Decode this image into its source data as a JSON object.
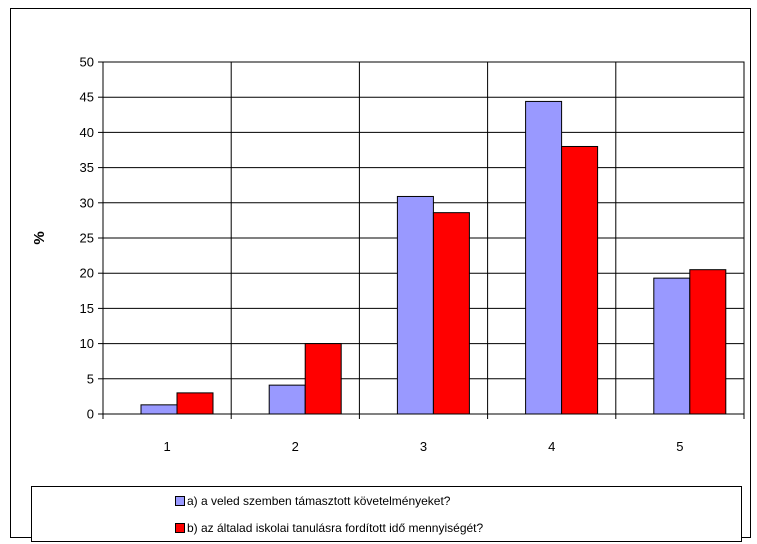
{
  "chart_data": {
    "type": "bar",
    "title": "",
    "xlabel": "",
    "ylabel": "%",
    "ylim": [
      0,
      50
    ],
    "yticks": [
      0,
      5,
      10,
      15,
      20,
      25,
      30,
      35,
      40,
      45,
      50
    ],
    "categories": [
      "1",
      "2",
      "3",
      "4",
      "5"
    ],
    "grid": true,
    "legend_position": "bottom",
    "series": [
      {
        "name": "a) a veled szemben támasztott követelményeket?",
        "color": "#9999ff",
        "values": [
          1.3,
          4.1,
          30.9,
          44.4,
          19.3
        ]
      },
      {
        "name": "b) az általad  iskolai tanulásra fordított idő mennyiségét?",
        "color": "#ff0000",
        "values": [
          3.0,
          10.0,
          28.6,
          38.0,
          20.5
        ]
      }
    ]
  }
}
